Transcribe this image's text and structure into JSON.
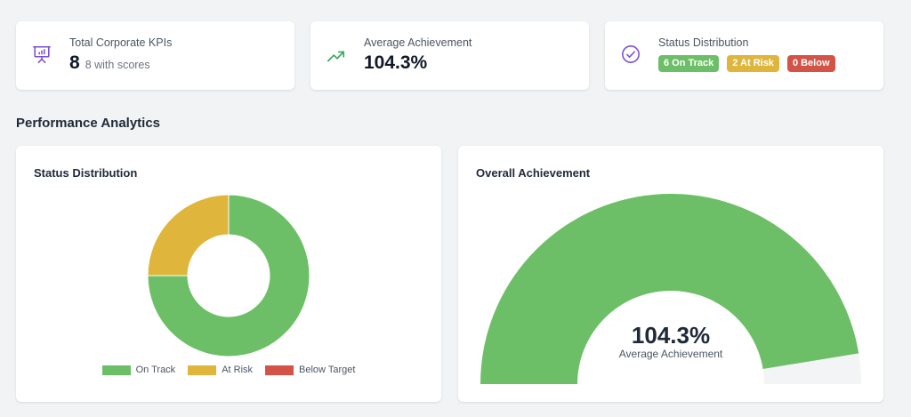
{
  "kpis": {
    "total": {
      "label": "Total Corporate KPIs",
      "value": "8",
      "sub": "8 with scores",
      "icon": "presentation-chart-icon"
    },
    "average": {
      "label": "Average Achievement",
      "value": "104.3%",
      "icon": "trending-up-icon"
    },
    "status": {
      "label": "Status Distribution",
      "icon": "check-circle-icon",
      "badges": [
        {
          "text": "6 On Track",
          "color": "#6dbf67"
        },
        {
          "text": "2 At Risk",
          "color": "#dfb63b"
        },
        {
          "text": "0 Below",
          "color": "#d35446"
        }
      ]
    }
  },
  "section_title": "Performance Analytics",
  "panels": {
    "status": {
      "title": "Status Distribution"
    },
    "overall": {
      "title": "Overall Achievement",
      "value": "104.3%",
      "caption": "Average Achievement"
    }
  },
  "colors": {
    "on_track": "#6dbf67",
    "at_risk": "#dfb63b",
    "below": "#d35446",
    "gauge_track": "#f3f4f6",
    "icon_purple": "#7c4ddb",
    "icon_green": "#3aa65b"
  },
  "chart_data": [
    {
      "type": "pie",
      "title": "Status Distribution",
      "categories": [
        "On Track",
        "At Risk",
        "Below Target"
      ],
      "values": [
        6,
        2,
        0
      ],
      "colors": [
        "#6dbf67",
        "#dfb63b",
        "#d35446"
      ],
      "legend": "bottom"
    },
    {
      "type": "gauge",
      "title": "Overall Achievement",
      "value": 104.3,
      "max": 110,
      "label": "104.3%",
      "caption": "Average Achievement"
    }
  ]
}
